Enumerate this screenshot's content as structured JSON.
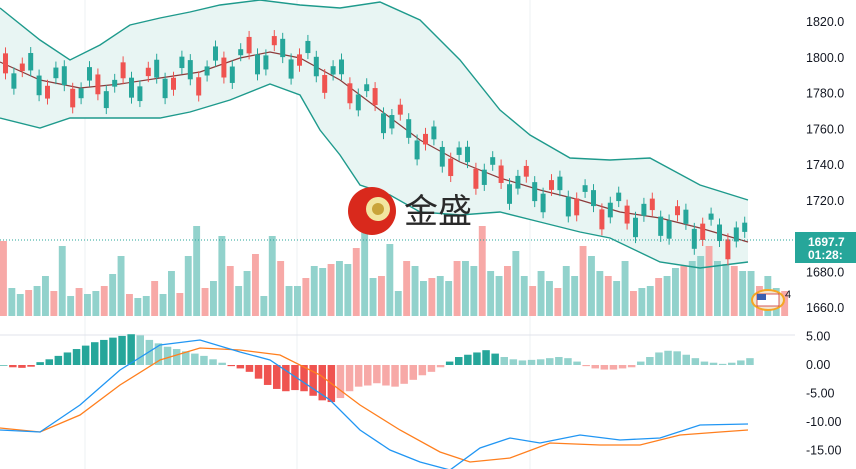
{
  "watermark": {
    "text": "金盛"
  },
  "price_tag": {
    "price": "1697.7",
    "countdown": "01:28:"
  },
  "alert_badge": "4",
  "colors": {
    "up": "#26a69a",
    "down": "#ef5350",
    "vol_up": "#92d2cc",
    "vol_down": "#f7a9a7",
    "bb_fill": "#e8f5f3",
    "bb_band": "#1e9a8c",
    "bb_mid": "#8b3a3a",
    "macd": "#2196f3",
    "signal": "#ff7f1e",
    "tag": "#26a69a"
  },
  "chart_data": [
    {
      "type": "candlestick",
      "indicators": [
        "volume",
        "bollinger_bands"
      ],
      "y_axis_ticks": [
        "1820.0",
        "1800.0",
        "1780.0",
        "1760.0",
        "1740.0",
        "1720.0",
        "1680.0",
        "1660.0"
      ],
      "ylim": [
        1660,
        1825
      ],
      "last_price": 1697.7
    },
    {
      "type": "macd",
      "y_axis_ticks": [
        "5.00",
        "0.00",
        "-5.00",
        "-10.00",
        "-15.00"
      ],
      "ylim": [
        -16,
        6
      ]
    }
  ]
}
